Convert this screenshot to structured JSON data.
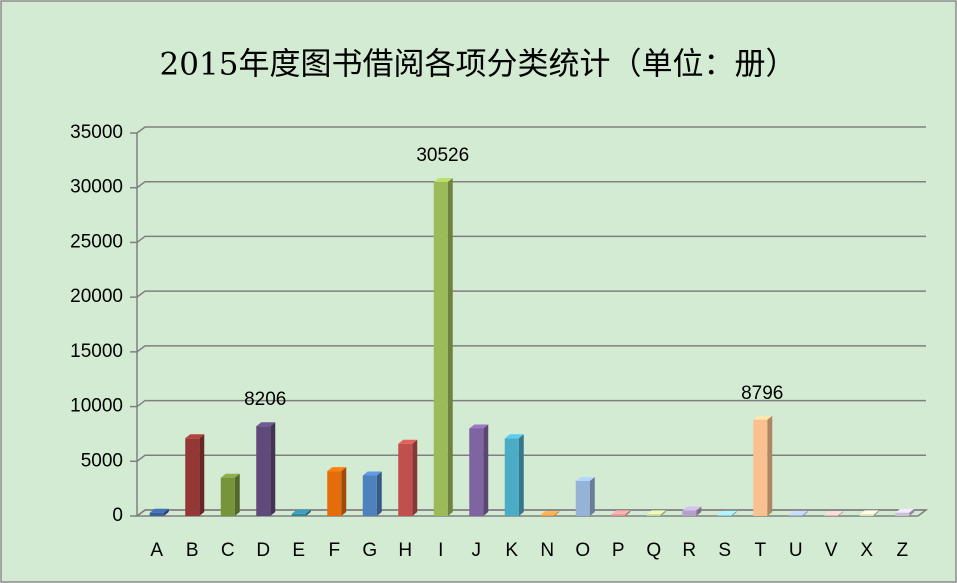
{
  "chart_data": {
    "type": "bar3d",
    "title": "2015年度图书借阅各项分类统计（单位：册）",
    "categories": [
      "A",
      "B",
      "C",
      "D",
      "E",
      "F",
      "G",
      "H",
      "I",
      "J",
      "K",
      "N",
      "O",
      "P",
      "Q",
      "R",
      "S",
      "T",
      "U",
      "V",
      "X",
      "Z"
    ],
    "values": [
      300,
      7100,
      3500,
      8206,
      200,
      4100,
      3700,
      6600,
      30526,
      8000,
      7100,
      80,
      3200,
      150,
      150,
      500,
      100,
      8796,
      100,
      80,
      150,
      300
    ],
    "value_labels": [
      null,
      null,
      null,
      "8206",
      null,
      null,
      null,
      null,
      "30526",
      null,
      null,
      null,
      null,
      null,
      null,
      null,
      null,
      "8796",
      null,
      null,
      null,
      null
    ],
    "colors": [
      "#3a5f9a",
      "#953735",
      "#77933c",
      "#604a7b",
      "#31859c",
      "#e46c0a",
      "#4f81bd",
      "#c0504d",
      "#9bbb59",
      "#8064a2",
      "#4bacc6",
      "#f79646",
      "#95b3d7",
      "#d99694",
      "#c3d69b",
      "#b3a2c7",
      "#93cddd",
      "#fac090",
      "#a6b9dc",
      "#e6b9b8",
      "#d7e4bd",
      "#ccc1da"
    ],
    "ylim": [
      0,
      35000
    ],
    "yticks": [
      0,
      5000,
      10000,
      15000,
      20000,
      25000,
      30000,
      35000
    ],
    "grid": true
  }
}
